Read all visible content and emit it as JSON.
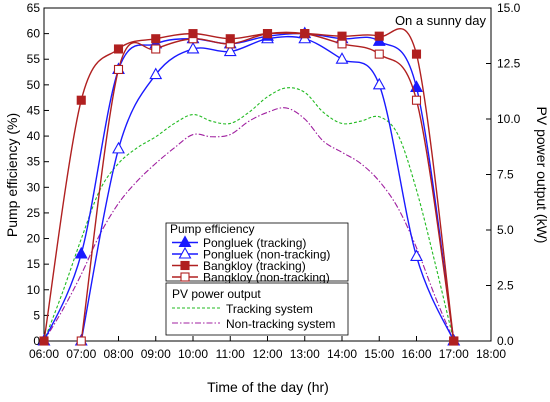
{
  "chart_data": {
    "type": "line",
    "xlabel": "Time of the day (hr)",
    "ylabel": "Pump efficiency (%)",
    "y2label": "PV power output (kW)",
    "annotation": "On a sunny day",
    "xlim": [
      6,
      18
    ],
    "ylim": [
      0,
      65
    ],
    "y2lim": [
      0,
      15
    ],
    "x_ticks": [
      6,
      7,
      8,
      9,
      10,
      11,
      12,
      13,
      14,
      15,
      16,
      17,
      18
    ],
    "x_tick_labels": [
      "06:00",
      "07:00",
      "08:00",
      "09:00",
      "10:00",
      "11:00",
      "12:00",
      "13:00",
      "14:00",
      "15:00",
      "16:00",
      "17:00",
      "18:00"
    ],
    "y_ticks": [
      0,
      5,
      10,
      15,
      20,
      25,
      30,
      35,
      40,
      45,
      50,
      55,
      60,
      65
    ],
    "y2_ticks": [
      0,
      2.5,
      5,
      7.5,
      10,
      12.5,
      15
    ],
    "y2_tick_labels": [
      "0.0",
      "2.5",
      "5.0",
      "7.5",
      "10.0",
      "12.5",
      "15.0"
    ],
    "legend": {
      "placement": "center",
      "group1_title": "Pump efficiency",
      "group2_title": "PV power output"
    },
    "series": [
      {
        "name": "Pongluek (tracking)",
        "axis": "left",
        "color": "#1a1aff",
        "marker": "filled-triangle",
        "x": [
          6,
          7,
          8,
          9,
          10,
          11,
          12,
          13,
          14,
          15,
          16,
          17
        ],
        "values": [
          0,
          17,
          53,
          58,
          59,
          58,
          59.5,
          60,
          59,
          58.5,
          49.5,
          0
        ]
      },
      {
        "name": "Pongluek (non-tracking)",
        "axis": "left",
        "color": "#1a1aff",
        "marker": "open-triangle",
        "x": [
          7,
          8,
          9,
          10,
          11,
          12,
          13,
          14,
          15,
          16,
          17
        ],
        "values": [
          0,
          37.5,
          52,
          57,
          56.5,
          59,
          59,
          55,
          50,
          16.5,
          0
        ]
      },
      {
        "name": "Bangkloy (tracking)",
        "axis": "left",
        "color": "#b02020",
        "marker": "filled-square",
        "x": [
          6,
          7,
          8,
          9,
          10,
          11,
          12,
          13,
          14,
          15,
          16,
          17
        ],
        "values": [
          0,
          47,
          57,
          59,
          60,
          59,
          60,
          60,
          59.5,
          59.5,
          56,
          0
        ]
      },
      {
        "name": "Bangkloy (non-tracking)",
        "axis": "left",
        "color": "#b02020",
        "marker": "open-square",
        "x": [
          7,
          8,
          9,
          10,
          11,
          12,
          13,
          14,
          15,
          16,
          17
        ],
        "values": [
          0,
          53,
          57,
          59,
          58,
          60,
          60,
          58,
          56,
          47,
          0
        ]
      },
      {
        "name": "Tracking system",
        "axis": "right",
        "color": "#22bb22",
        "dash": "3,2",
        "x": [
          6,
          6.5,
          7,
          7.5,
          8,
          8.5,
          9,
          9.5,
          10,
          10.5,
          11,
          11.5,
          12,
          12.5,
          13,
          13.5,
          14,
          14.5,
          15,
          15.5,
          16,
          16.5,
          17
        ],
        "values": [
          0,
          2.2,
          4.6,
          6.8,
          8.0,
          8.7,
          9.2,
          9.8,
          10.2,
          9.9,
          9.8,
          10.3,
          11.0,
          11.4,
          11.2,
          10.3,
          9.8,
          9.9,
          10.1,
          9.3,
          6.8,
          3.5,
          0
        ]
      },
      {
        "name": "Non-tracking system",
        "axis": "right",
        "color": "#a020a0",
        "dash": "6,2,1.5,2",
        "x": [
          6,
          6.5,
          7,
          7.5,
          8,
          8.5,
          9,
          9.5,
          10,
          10.5,
          11,
          11.5,
          12,
          12.5,
          13,
          13.5,
          14,
          14.5,
          15,
          15.5,
          16,
          16.5,
          17
        ],
        "values": [
          0,
          1.4,
          3.0,
          4.8,
          6.2,
          7.2,
          8.0,
          8.7,
          9.3,
          9.2,
          9.3,
          9.9,
          10.3,
          10.5,
          10.0,
          9.0,
          8.5,
          8.0,
          7.2,
          6.0,
          4.2,
          2.0,
          0
        ]
      }
    ]
  }
}
